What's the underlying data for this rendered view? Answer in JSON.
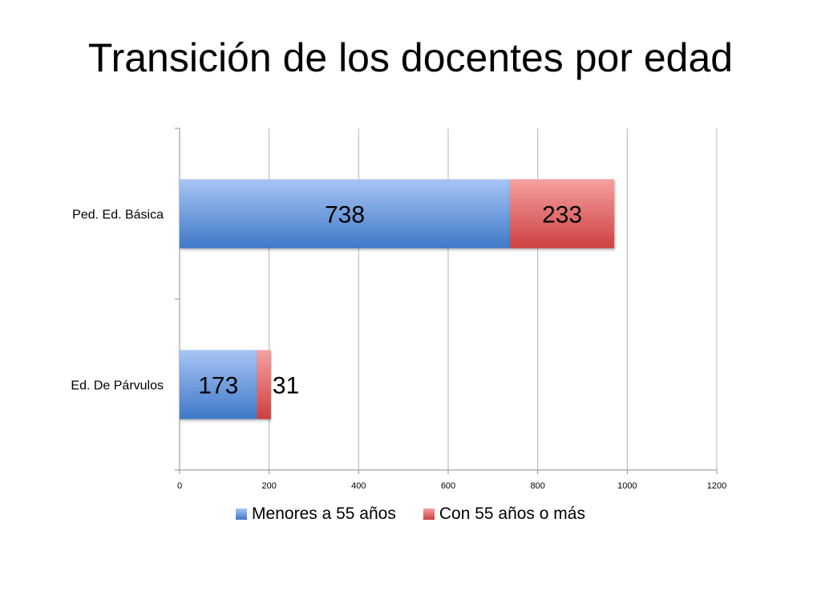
{
  "slide": {
    "title": "Transición de los docentes por edad"
  },
  "chart_data": {
    "type": "bar",
    "orientation": "horizontal",
    "stacked": true,
    "categories": [
      "Ped. Ed. Básica",
      "Ed. De Párvulos"
    ],
    "series": [
      {
        "name": "Menores a 55 años",
        "values": [
          738,
          173
        ],
        "color": "#4f81bd"
      },
      {
        "name": "Con 55 años o más",
        "values": [
          233,
          31
        ],
        "color": "#c0504d"
      }
    ],
    "data_labels": [
      [
        "738",
        "173"
      ],
      [
        "233",
        "31"
      ]
    ],
    "xlim": [
      0,
      1200
    ],
    "x_ticks": [
      0,
      200,
      400,
      600,
      800,
      1000,
      1200
    ],
    "grid": "vertical",
    "legend_position": "bottom",
    "title": "Transición de los docentes por edad",
    "xlabel": "",
    "ylabel": ""
  }
}
